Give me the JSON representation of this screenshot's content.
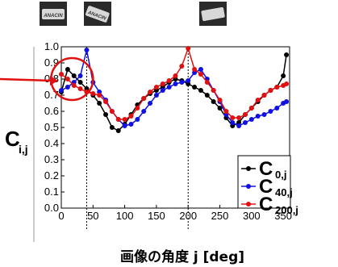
{
  "chart_data": {
    "type": "line",
    "xlabel": "画像の角度 j [deg]",
    "ylabel": {
      "main": "C",
      "sub": "i,j"
    },
    "xlim": [
      0,
      360
    ],
    "ylim": [
      0.0,
      1.0
    ],
    "x_ticks": [
      "0",
      "50",
      "100",
      "150",
      "200",
      "250",
      "300",
      "350"
    ],
    "y_ticks": [
      "0.0",
      "0.1",
      "0.2",
      "0.3",
      "0.4",
      "0.5",
      "0.6",
      "0.7",
      "0.8",
      "0.9",
      "1.0"
    ],
    "grid": false,
    "legend_position": "bottom-right",
    "reference_lines_x": [
      40,
      200
    ],
    "highlight_circle": {
      "x": 17,
      "y": 0.8
    },
    "thumbnails": [
      {
        "x": 0,
        "label": "ANACIN"
      },
      {
        "x": 40,
        "label": "ANACIN"
      },
      {
        "x": 200,
        "label": ""
      }
    ],
    "x": [
      0,
      10,
      20,
      30,
      40,
      50,
      60,
      70,
      80,
      90,
      100,
      110,
      120,
      130,
      140,
      150,
      160,
      170,
      180,
      190,
      200,
      210,
      220,
      230,
      240,
      250,
      260,
      270,
      280,
      290,
      300,
      310,
      320,
      330,
      340,
      350,
      355
    ],
    "series": [
      {
        "name": "C",
        "sub": "0,j",
        "color": "#000000",
        "values": [
          0.72,
          0.86,
          0.82,
          0.78,
          0.74,
          0.7,
          0.65,
          0.58,
          0.5,
          0.48,
          0.52,
          0.58,
          0.64,
          0.68,
          0.71,
          0.73,
          0.75,
          0.78,
          0.8,
          0.79,
          0.77,
          0.75,
          0.73,
          0.7,
          0.66,
          0.62,
          0.56,
          0.51,
          0.53,
          0.58,
          0.62,
          0.66,
          0.7,
          0.73,
          0.75,
          0.82,
          0.95
        ]
      },
      {
        "name": "C",
        "sub": "40,j",
        "color": "#1010e0",
        "values": [
          0.73,
          0.75,
          0.78,
          0.82,
          0.98,
          0.78,
          0.72,
          0.67,
          0.6,
          0.55,
          0.51,
          0.52,
          0.55,
          0.6,
          0.65,
          0.7,
          0.73,
          0.75,
          0.77,
          0.78,
          0.79,
          0.84,
          0.86,
          0.8,
          0.73,
          0.66,
          0.58,
          0.53,
          0.51,
          0.53,
          0.55,
          0.57,
          0.58,
          0.6,
          0.62,
          0.65,
          0.66
        ]
      },
      {
        "name": "C",
        "sub": "200,j",
        "color": "#e01010",
        "values": [
          0.83,
          0.8,
          0.76,
          0.74,
          0.72,
          0.71,
          0.7,
          0.66,
          0.6,
          0.55,
          0.55,
          0.57,
          0.62,
          0.68,
          0.72,
          0.75,
          0.77,
          0.79,
          0.82,
          0.88,
          0.99,
          0.86,
          0.83,
          0.78,
          0.73,
          0.67,
          0.6,
          0.56,
          0.56,
          0.58,
          0.62,
          0.67,
          0.7,
          0.73,
          0.75,
          0.76,
          0.77
        ]
      }
    ]
  }
}
